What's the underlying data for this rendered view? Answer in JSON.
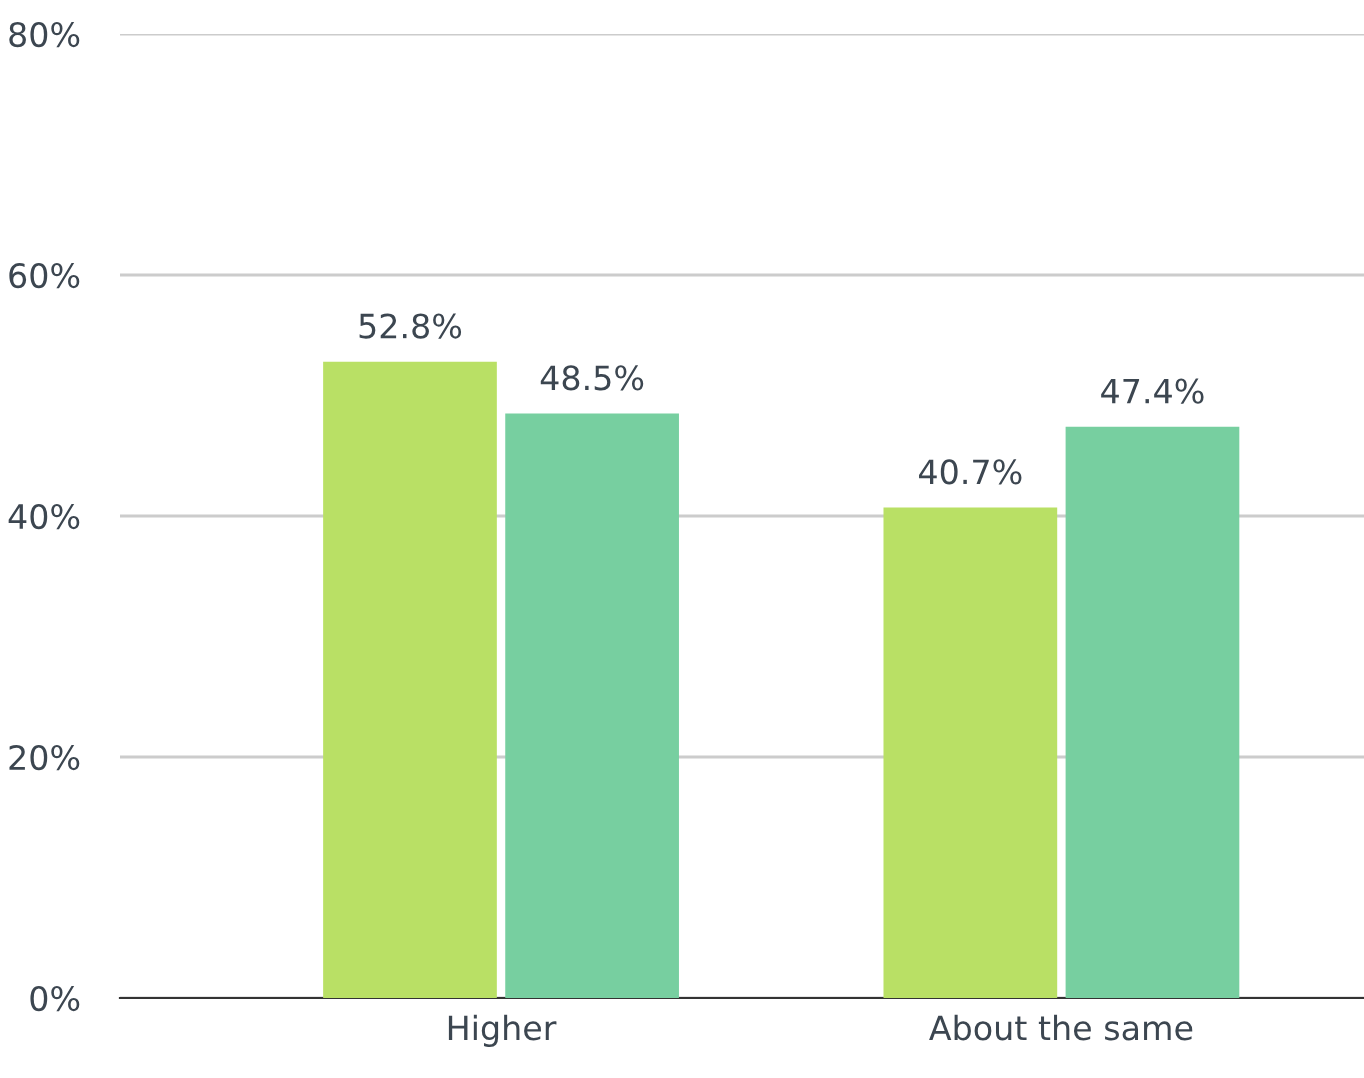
{
  "chart_data": {
    "type": "bar",
    "categories": [
      "Higher",
      "About the same"
    ],
    "series": [
      {
        "color": "#b9e065",
        "values": [
          52.8,
          40.7
        ],
        "value_labels": [
          "52.8%",
          "40.7%"
        ]
      },
      {
        "color": "#77cfa0",
        "values": [
          48.5,
          47.4
        ],
        "value_labels": [
          "48.5%",
          "47.4%"
        ]
      }
    ],
    "ylim": [
      0,
      80
    ],
    "yticks": [
      {
        "value": 0,
        "label": "0%"
      },
      {
        "value": 20,
        "label": "20%"
      },
      {
        "value": 40,
        "label": "40%"
      },
      {
        "value": 60,
        "label": "60%"
      },
      {
        "value": 80,
        "label": "80%"
      }
    ],
    "grid": "y",
    "legend": false
  }
}
